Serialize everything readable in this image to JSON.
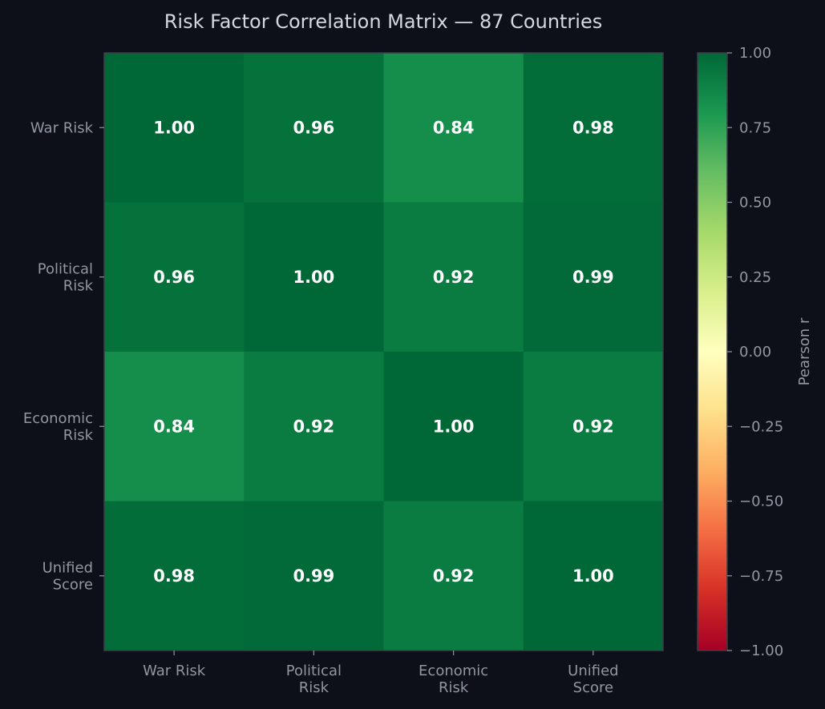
{
  "chart_data": {
    "type": "heatmap",
    "title": "Risk Factor Correlation Matrix — 87 Countries",
    "x_categories": [
      [
        "War Risk"
      ],
      [
        "Political",
        "Risk"
      ],
      [
        "Economic",
        "Risk"
      ],
      [
        "Unified",
        "Score"
      ]
    ],
    "y_categories": [
      [
        "War Risk"
      ],
      [
        "Political",
        "Risk"
      ],
      [
        "Economic",
        "Risk"
      ],
      [
        "Unified",
        "Score"
      ]
    ],
    "values": [
      [
        1.0,
        0.96,
        0.84,
        0.98
      ],
      [
        0.96,
        1.0,
        0.92,
        0.99
      ],
      [
        0.84,
        0.92,
        1.0,
        0.92
      ],
      [
        0.98,
        0.99,
        0.92,
        1.0
      ]
    ],
    "value_format": "0.00",
    "colormap": "RdYlGn",
    "colormap_stops": [
      "#a50026",
      "#d73027",
      "#f46d43",
      "#fdae61",
      "#fee08b",
      "#ffffbf",
      "#d9ef8b",
      "#a6d96a",
      "#66bd63",
      "#1a9850",
      "#006837"
    ],
    "colorbar": {
      "label": "Pearson r",
      "range": [
        -1,
        1
      ],
      "ticks": [
        "1.00",
        "0.75",
        "0.50",
        "0.25",
        "0.00",
        "−0.25",
        "−0.50",
        "−0.75",
        "−1.00"
      ],
      "tick_values": [
        1,
        0.75,
        0.5,
        0.25,
        0,
        -0.25,
        -0.5,
        -0.75,
        -1
      ]
    },
    "colors": {
      "background": "#0d1018",
      "text": "#d4d7de",
      "tick_text": "#9096a2",
      "cell_text": "#ffffff"
    }
  }
}
